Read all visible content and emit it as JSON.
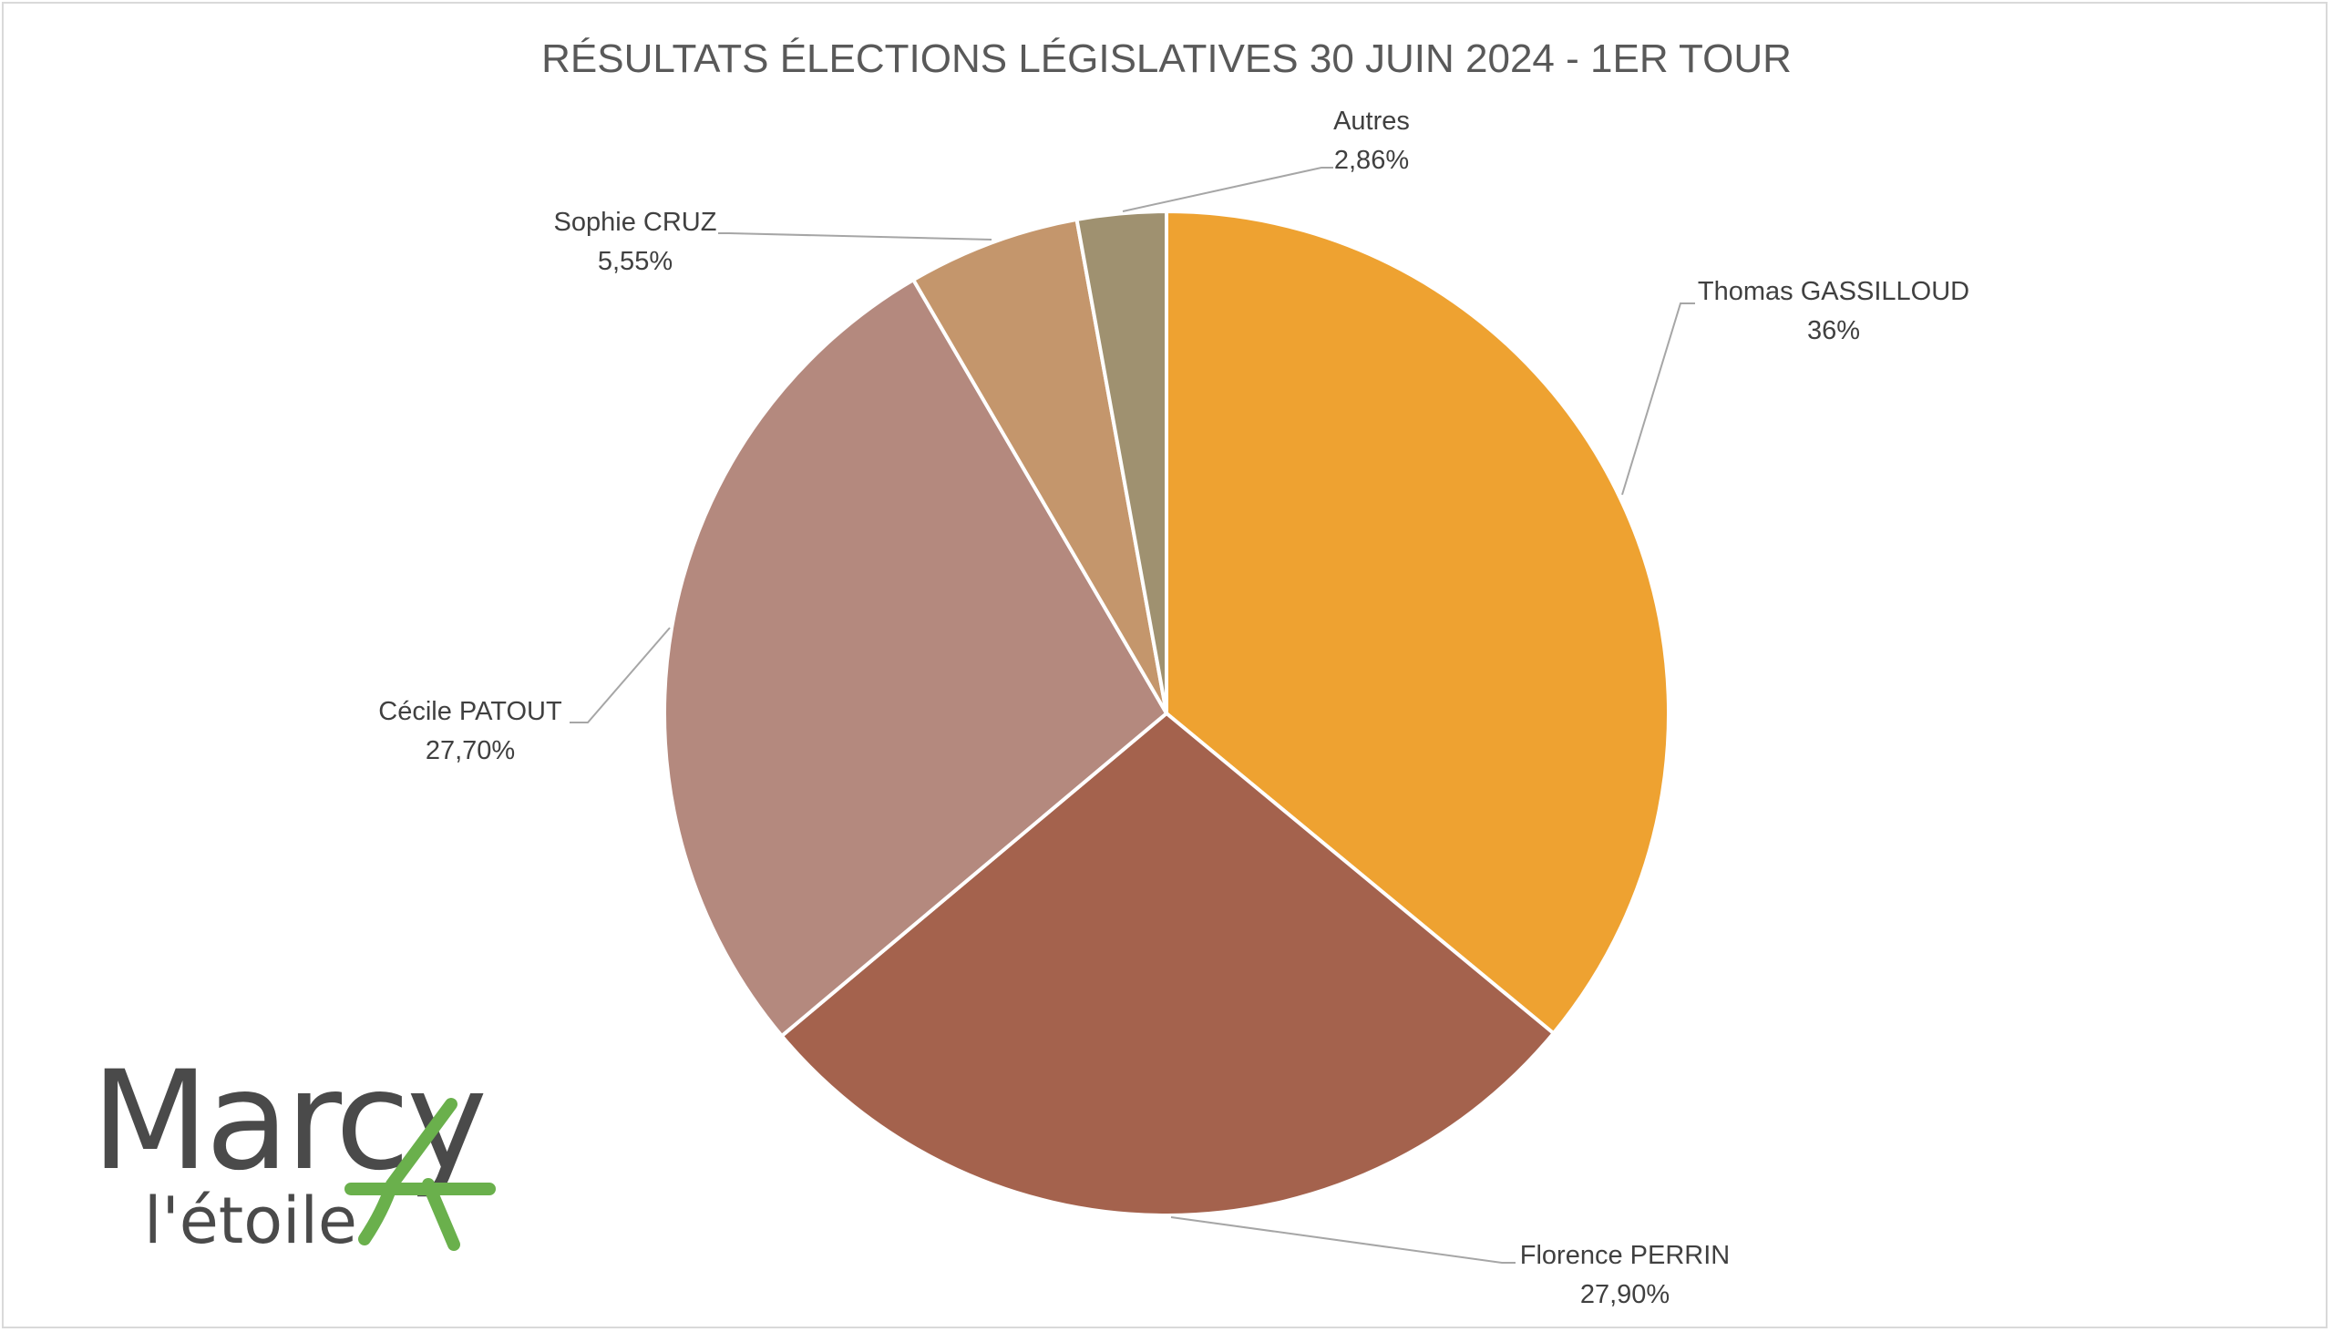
{
  "chart_data": {
    "type": "pie",
    "title": "RÉSULTATS ÉLECTIONS LÉGISLATIVES 30 JUIN 2024 - 1ER TOUR",
    "slices": [
      {
        "label": "Thomas GASSILLOUD",
        "value": 36,
        "display": "36%",
        "color": "#eea231"
      },
      {
        "label": "Florence PERRIN",
        "value": 27.9,
        "display": "27,90%",
        "color": "#a4624d"
      },
      {
        "label": "Cécile PATOUT",
        "value": 27.7,
        "display": "27,70%",
        "color": "#b4897e"
      },
      {
        "label": "Sophie CRUZ",
        "value": 5.55,
        "display": "5,55%",
        "color": "#c4966c"
      },
      {
        "label": "Autres",
        "value": 2.86,
        "display": "2,86%",
        "color": "#9f9170"
      }
    ],
    "start_angle": "12 o'clock, clockwise",
    "legend": "none (data labels with leader lines)"
  },
  "logo": {
    "line1": "Marcy",
    "line2": "l'étoile",
    "accent_color": "#6ab04c"
  }
}
